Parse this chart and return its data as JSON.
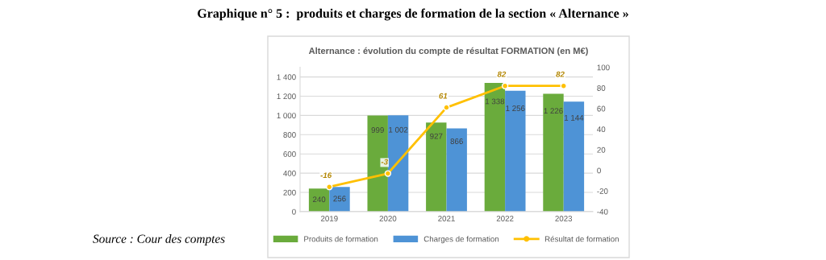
{
  "chart_data": {
    "type": "bar",
    "title": "Graphique n° 5 :  produits et charges de formation de la section « Alternance »",
    "subtitle": "Alternance : évolution du compte de résultat FORMATION (en M€)",
    "annotations": [
      "Source : Cour des comptes"
    ],
    "categories": [
      "2019",
      "2020",
      "2021",
      "2022",
      "2023"
    ],
    "series": [
      {
        "name": "Produits de formation",
        "color": "#6aab3c",
        "values": [
          240,
          999,
          927,
          1338,
          1226
        ],
        "value_labels": [
          "240",
          "999",
          "927",
          "1 338",
          "1 226"
        ]
      },
      {
        "name": "Charges de formation",
        "color": "#4e93d6",
        "values": [
          256,
          1002,
          866,
          1256,
          1144
        ],
        "value_labels": [
          "256",
          "1 002",
          "866",
          "1 256",
          "1 144"
        ]
      },
      {
        "name": "Résultat de formation",
        "type": "line",
        "axis": "y2",
        "color": "#ffc000",
        "marker": "circle",
        "values": [
          -16,
          -3,
          61,
          82,
          82
        ],
        "value_labels": [
          "-16",
          "-3",
          "61",
          "82",
          "82"
        ]
      }
    ],
    "ylim": [
      0,
      1500
    ],
    "yticks": [
      0,
      200,
      400,
      600,
      800,
      {
        "value": 1000,
        "label": "1 000"
      },
      {
        "value": 1200,
        "label": "1 200"
      },
      {
        "value": 1400,
        "label": "1 400"
      }
    ],
    "y2lim": [
      -40,
      100
    ],
    "y2ticks": [
      -40,
      -20,
      0,
      20,
      40,
      60,
      80,
      100
    ],
    "grid": "y",
    "legend": "bottom"
  }
}
